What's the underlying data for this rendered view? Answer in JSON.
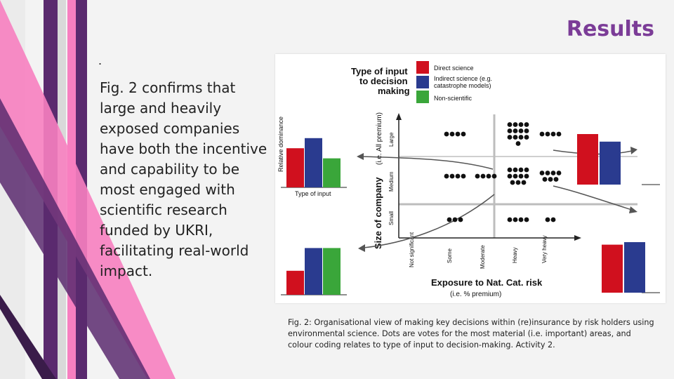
{
  "slide": {
    "title": "Results",
    "bullet_marker": ".",
    "body_lines": [
      " Fig. 2 confirms that",
      "large and heavily",
      "exposed  companies",
      "have both the incentive",
      "and capability to be",
      "most engaged with",
      "scientific research",
      "funded by UKRI,",
      "facilitating real-world",
      "impact."
    ],
    "caption_lines": [
      "Fig. 2: Organisational view of making key decisions within (re)insurance by risk holders using",
      "environmental science. Dots are votes for the most material (i.e. important) areas, and",
      "colour coding relates to type of input to decision-making. Activity 2."
    ]
  },
  "colors": {
    "accent_title": "#7b3c97",
    "direct_science": "#d0101e",
    "indirect_science": "#2a3b8f",
    "non_scientific": "#3aa63a",
    "stripe_pink": "#f77fc0",
    "stripe_purple": "#5a2a6e"
  },
  "figure": {
    "legend": {
      "heading_line1": "Type of input",
      "heading_line2": "to decision",
      "heading_line3": "making",
      "items": [
        {
          "label": "Direct science",
          "color": "#d0101e"
        },
        {
          "label": "Indirect science (e.g.",
          "label2": "catastrophe models)",
          "color": "#2a3b8f"
        },
        {
          "label": "Non-scientific",
          "color": "#3aa63a"
        }
      ]
    },
    "left_bar_ylabel": "Relative dominance",
    "left_bar_xlabel": "Type of input",
    "y_axis_title": "Size of company",
    "y_axis_subtitle": "(i.e. All premium)",
    "y_ticks": [
      "Large",
      "Medium",
      "Small"
    ],
    "x_axis_title": "Exposure to Nat. Cat. risk",
    "x_axis_subtitle": "(i.e. % premium)",
    "x_ticks": [
      "Not significant",
      "Some",
      "Moderate",
      "Heavy",
      "Very heavy"
    ]
  },
  "chart_data": [
    {
      "type": "bar",
      "categories": [
        "Direct science",
        "Indirect science",
        "Non-scientific"
      ],
      "values": [
        62,
        78,
        46
      ],
      "ylabel": "Relative dominance",
      "xlabel": "Type of input"
    },
    {
      "type": "bar",
      "categories": [
        "Direct science",
        "Indirect science",
        "Non-scientific"
      ],
      "values": [
        38,
        74,
        74
      ]
    },
    {
      "type": "bar",
      "categories": [
        "Direct science",
        "Indirect science"
      ],
      "values": [
        80,
        68
      ]
    },
    {
      "type": "bar",
      "categories": [
        "Direct science",
        "Indirect science"
      ],
      "values": [
        76,
        80
      ]
    },
    {
      "type": "scatter",
      "xlabel": "Exposure to Nat. Cat. risk",
      "ylabel": "Size of company",
      "x_categories": [
        "Not significant",
        "Some",
        "Moderate",
        "Heavy",
        "Very heavy"
      ],
      "y_categories": [
        "Small",
        "Medium",
        "Large"
      ],
      "dot_votes": [
        {
          "x": "Some",
          "y": "Large",
          "votes": 4
        },
        {
          "x": "Heavy",
          "y": "Large",
          "votes": 13
        },
        {
          "x": "Very heavy",
          "y": "Large",
          "votes": 4
        },
        {
          "x": "Some",
          "y": "Medium",
          "votes": 4
        },
        {
          "x": "Moderate",
          "y": "Medium",
          "votes": 4
        },
        {
          "x": "Heavy",
          "y": "Medium",
          "votes": 11
        },
        {
          "x": "Very heavy",
          "y": "Medium",
          "votes": 7
        },
        {
          "x": "Some",
          "y": "Small",
          "votes": 3
        },
        {
          "x": "Heavy",
          "y": "Small",
          "votes": 4
        },
        {
          "x": "Very heavy",
          "y": "Small",
          "votes": 2
        }
      ]
    }
  ]
}
